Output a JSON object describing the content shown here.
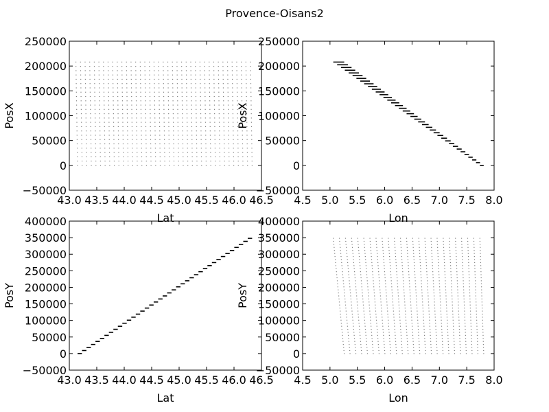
{
  "figure": {
    "title": "Provence-Oisans2"
  },
  "chart_data": [
    {
      "type": "scatter",
      "xlabel": "Lat",
      "ylabel": "PosX",
      "xlim": [
        43.0,
        46.5
      ],
      "ylim": [
        -50000,
        250000
      ],
      "xticks": [
        43.0,
        43.5,
        44.0,
        44.5,
        45.0,
        45.5,
        46.0,
        46.5
      ],
      "yticks": [
        -50000,
        0,
        50000,
        100000,
        150000,
        200000,
        250000
      ],
      "xtick_labels": [
        "43.0",
        "43.5",
        "44.0",
        "44.5",
        "45.0",
        "45.5",
        "46.0",
        "46.5"
      ],
      "ytick_labels": [
        "−50000",
        "0",
        "50000",
        "100000",
        "150000",
        "200000",
        "250000"
      ],
      "grid": false,
      "series": [
        {
          "pattern": "regular grid of points",
          "x_range": [
            43.15,
            46.33
          ],
          "y_range": [
            0,
            208000
          ],
          "columns": 39,
          "rows": 25,
          "x_skew_bottom_to_top": -0.03,
          "color": "#7f7f7f"
        }
      ]
    },
    {
      "type": "scatter",
      "xlabel": "Lon",
      "ylabel": "PosX",
      "xlim": [
        4.5,
        8.0
      ],
      "ylim": [
        -50000,
        250000
      ],
      "xticks": [
        4.5,
        5.0,
        5.5,
        6.0,
        6.5,
        7.0,
        7.5,
        8.0
      ],
      "yticks": [
        -50000,
        0,
        50000,
        100000,
        150000,
        200000,
        250000
      ],
      "xtick_labels": [
        "4.5",
        "5.0",
        "5.5",
        "6.0",
        "6.5",
        "7.0",
        "7.5",
        "8.0"
      ],
      "ytick_labels": [
        "−50000",
        "0",
        "50000",
        "100000",
        "150000",
        "200000",
        "250000"
      ],
      "grid": false,
      "series": [
        {
          "pattern": "descending diagonal band",
          "x_start": [
            5.06,
            5.26
          ],
          "x_end": [
            7.74,
            7.81
          ],
          "y_range": [
            0,
            208000
          ],
          "steps": 39,
          "color": "#000000"
        }
      ]
    },
    {
      "type": "scatter",
      "xlabel": "Lat",
      "ylabel": "PosY",
      "xlim": [
        43.0,
        46.5
      ],
      "ylim": [
        -50000,
        400000
      ],
      "xticks": [
        43.0,
        43.5,
        44.0,
        44.5,
        45.0,
        45.5,
        46.0,
        46.5
      ],
      "yticks": [
        -50000,
        0,
        50000,
        100000,
        150000,
        200000,
        250000,
        300000,
        350000,
        400000
      ],
      "xtick_labels": [
        "43.0",
        "43.5",
        "44.0",
        "44.5",
        "45.0",
        "45.5",
        "46.0",
        "46.5"
      ],
      "ytick_labels": [
        "−50000",
        "0",
        "50000",
        "100000",
        "150000",
        "200000",
        "250000",
        "300000",
        "350000",
        "400000"
      ],
      "grid": false,
      "series": [
        {
          "pattern": "ascending diagonal band",
          "x_start": [
            43.15,
            43.23
          ],
          "x_end": [
            46.25,
            46.33
          ],
          "y_range": [
            0,
            348000
          ],
          "steps": 39,
          "color": "#000000"
        }
      ]
    },
    {
      "type": "scatter",
      "xlabel": "Lon",
      "ylabel": "PosY",
      "xlim": [
        4.5,
        8.0
      ],
      "ylim": [
        -50000,
        400000
      ],
      "xticks": [
        4.5,
        5.0,
        5.5,
        6.0,
        6.5,
        7.0,
        7.5,
        8.0
      ],
      "yticks": [
        -50000,
        0,
        50000,
        100000,
        150000,
        200000,
        250000,
        300000,
        350000,
        400000
      ],
      "xtick_labels": [
        "4.5",
        "5.0",
        "5.5",
        "6.0",
        "6.5",
        "7.0",
        "7.5",
        "8.0"
      ],
      "ytick_labels": [
        "−50000",
        "0",
        "50000",
        "100000",
        "150000",
        "200000",
        "250000",
        "300000",
        "350000",
        "400000"
      ],
      "grid": false,
      "series": [
        {
          "pattern": "regular grid of points",
          "x_range_bottom": [
            5.26,
            7.81
          ],
          "x_range_top": [
            5.06,
            7.74
          ],
          "y_range": [
            0,
            348000
          ],
          "columns": 25,
          "rows": 39,
          "color": "#7f7f7f"
        }
      ]
    }
  ]
}
